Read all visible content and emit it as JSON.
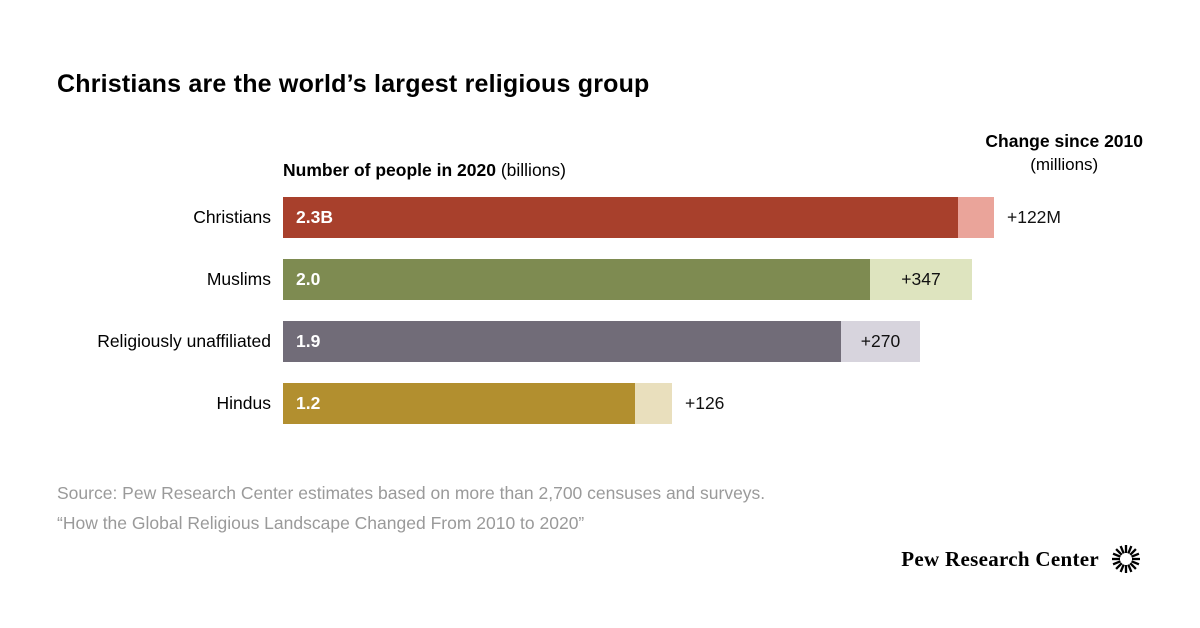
{
  "title": "Christians are the world’s largest religious group",
  "chart_data": {
    "type": "bar",
    "orientation": "horizontal",
    "value_header_bold": "Number of people in 2020",
    "value_header_unit": " (billions)",
    "change_header": "Change since 2010",
    "change_header_unit": "(millions)",
    "value_unit": "billions",
    "change_unit": "millions",
    "xlim": [
      0,
      2.3
    ],
    "rows": [
      {
        "category": "Christians",
        "value": 2.3,
        "value_label": "2.3B",
        "change": 122,
        "change_label": "+122M",
        "bar_color": "#a8402c",
        "change_color": "#eaa49a"
      },
      {
        "category": "Muslims",
        "value": 2.0,
        "value_label": "2.0",
        "change": 347,
        "change_label": "+347",
        "bar_color": "#7e8b51",
        "change_color": "#dee4bf"
      },
      {
        "category": "Religiously unaffiliated",
        "value": 1.9,
        "value_label": "1.9",
        "change": 270,
        "change_label": "+270",
        "bar_color": "#716c78",
        "change_color": "#d7d4dd"
      },
      {
        "category": "Hindus",
        "value": 1.2,
        "value_label": "1.2",
        "change": 126,
        "change_label": "+126",
        "bar_color": "#b28f2f",
        "change_color": "#e9dfbd"
      }
    ]
  },
  "source": {
    "line1": "Source: Pew Research Center estimates based on more than 2,700 censuses and surveys.",
    "line2": "“How the Global Religious Landscape Changed From 2010 to 2020”"
  },
  "branding": {
    "name": "Pew Research Center",
    "logo_icon": "sunburst-icon"
  }
}
